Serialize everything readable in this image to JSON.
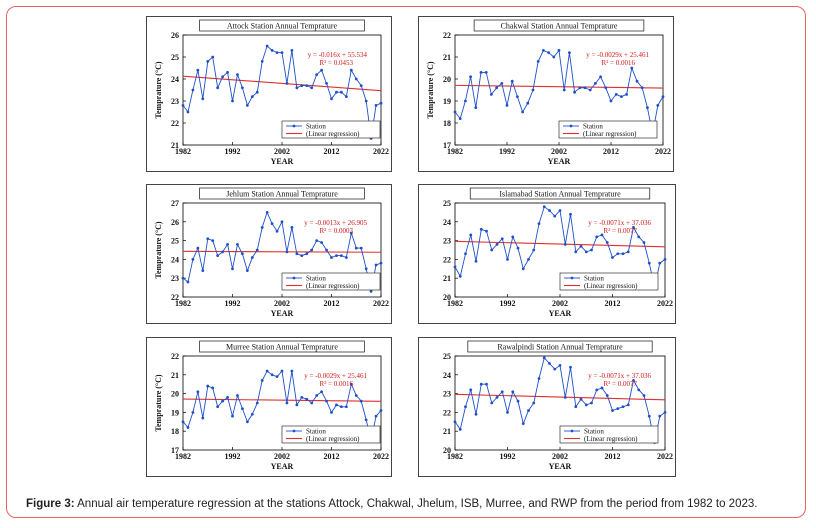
{
  "caption": {
    "label": "Figure 3:",
    "text": " Annual air temperature regression at the stations Attock, Chakwal, Jhelum, ISB, Murree, and RWP from the period from 1982 to 2023."
  },
  "chart_data": [
    {
      "type": "line",
      "title": "Attock Station Annual Temprature",
      "xlabel": "YEAR",
      "ylabel": "Temprature (°C)",
      "xlim": [
        1982,
        2022
      ],
      "ylim": [
        21,
        26
      ],
      "xticks": [
        1982,
        1992,
        2002,
        2012,
        2022
      ],
      "yticks": [
        21,
        22,
        23,
        24,
        25,
        26
      ],
      "equation": "y = -0.016x + 55.534",
      "r2": "R² = 0.0453",
      "trend": [
        24.13,
        23.47
      ],
      "legend": [
        "Station",
        "(Linear regression)"
      ],
      "series": [
        {
          "name": "Station",
          "x": [
            1982,
            1983,
            1984,
            1985,
            1986,
            1987,
            1988,
            1989,
            1990,
            1991,
            1992,
            1993,
            1994,
            1995,
            1996,
            1997,
            1998,
            1999,
            2000,
            2001,
            2002,
            2003,
            2004,
            2005,
            2006,
            2007,
            2008,
            2009,
            2010,
            2011,
            2012,
            2013,
            2014,
            2015,
            2016,
            2017,
            2018,
            2019,
            2020,
            2021,
            2022
          ],
          "values": [
            22.8,
            22.5,
            23.5,
            24.4,
            23.1,
            24.8,
            25.0,
            23.6,
            24.1,
            24.3,
            23.0,
            24.2,
            23.6,
            22.8,
            23.2,
            23.4,
            24.8,
            25.5,
            25.3,
            25.2,
            25.2,
            23.8,
            25.3,
            23.6,
            23.7,
            23.7,
            23.6,
            24.2,
            24.4,
            23.8,
            23.1,
            23.4,
            23.4,
            23.2,
            24.4,
            24.0,
            23.7,
            23.0,
            21.3,
            22.8,
            22.9
          ]
        }
      ]
    },
    {
      "type": "line",
      "title": "Chakwal Station Annual Temprature",
      "xlabel": "YEAR",
      "ylabel": "Temprature (°C)",
      "xlim": [
        1982,
        2022
      ],
      "ylim": [
        17,
        22
      ],
      "xticks": [
        1982,
        1992,
        2002,
        2012,
        2022
      ],
      "yticks": [
        17,
        18,
        19,
        20,
        21,
        22
      ],
      "equation": "y = -0.0029x + 25.461",
      "r2": "R² = 0.0016",
      "trend": [
        19.71,
        19.59
      ],
      "legend": [
        "Station",
        "(Linear regression)"
      ],
      "series": [
        {
          "name": "Station",
          "x": [
            1982,
            1983,
            1984,
            1985,
            1986,
            1987,
            1988,
            1989,
            1990,
            1991,
            1992,
            1993,
            1994,
            1995,
            1996,
            1997,
            1998,
            1999,
            2000,
            2001,
            2002,
            2003,
            2004,
            2005,
            2006,
            2007,
            2008,
            2009,
            2010,
            2011,
            2012,
            2013,
            2014,
            2015,
            2016,
            2017,
            2018,
            2019,
            2020,
            2021,
            2022
          ],
          "values": [
            18.5,
            18.2,
            19.0,
            20.1,
            18.7,
            20.3,
            20.3,
            19.3,
            19.6,
            19.8,
            18.8,
            19.9,
            19.2,
            18.5,
            18.9,
            19.5,
            20.8,
            21.3,
            21.2,
            21.0,
            21.3,
            19.5,
            21.2,
            19.4,
            19.6,
            19.6,
            19.5,
            19.8,
            20.1,
            19.6,
            19.0,
            19.3,
            19.2,
            19.3,
            20.5,
            19.9,
            19.6,
            18.7,
            17.5,
            18.8,
            19.2
          ]
        }
      ]
    },
    {
      "type": "line",
      "title": "Jehlum Station Annual Temprature",
      "xlabel": "YEAR",
      "ylabel": "Temprature (°C)",
      "xlim": [
        1982,
        2022
      ],
      "ylim": [
        22,
        27
      ],
      "xticks": [
        1982,
        1992,
        2002,
        2012,
        2022
      ],
      "yticks": [
        22,
        23,
        24,
        25,
        26,
        27
      ],
      "equation": "y = -0.0013x + 26.905",
      "r2": "R² = 0.0003",
      "trend": [
        24.43,
        24.38
      ],
      "legend": [
        "Station",
        "(Linear regression)"
      ],
      "series": [
        {
          "name": "Station",
          "x": [
            1982,
            1983,
            1984,
            1985,
            1986,
            1987,
            1988,
            1989,
            1990,
            1991,
            1992,
            1993,
            1994,
            1995,
            1996,
            1997,
            1998,
            1999,
            2000,
            2001,
            2002,
            2003,
            2004,
            2005,
            2006,
            2007,
            2008,
            2009,
            2010,
            2011,
            2012,
            2013,
            2014,
            2015,
            2016,
            2017,
            2018,
            2019,
            2020,
            2021,
            2022
          ],
          "values": [
            23.0,
            22.8,
            24.0,
            24.6,
            23.4,
            25.1,
            25.0,
            24.2,
            24.4,
            24.8,
            23.5,
            24.8,
            24.3,
            23.4,
            24.1,
            24.5,
            25.7,
            26.5,
            25.9,
            25.5,
            26.0,
            24.4,
            25.7,
            24.3,
            24.2,
            24.3,
            24.5,
            25.0,
            24.9,
            24.5,
            24.1,
            24.2,
            24.2,
            24.1,
            25.4,
            24.6,
            24.6,
            23.5,
            22.3,
            23.7,
            23.8
          ]
        }
      ]
    },
    {
      "type": "line",
      "title": "Islamabad Station Annual Temprature",
      "xlabel": "YEAR",
      "ylabel": "",
      "xlim": [
        1982,
        2022
      ],
      "ylim": [
        20,
        25
      ],
      "xticks": [
        1982,
        1992,
        2002,
        2012,
        2022
      ],
      "yticks": [
        20,
        21,
        22,
        23,
        24,
        25
      ],
      "equation": "y = -0.0071x + 37.036",
      "r2": "R² = 0.0077",
      "trend": [
        22.96,
        22.67
      ],
      "legend": [
        "Station",
        "(Linear regression)"
      ],
      "series": [
        {
          "name": "Station",
          "x": [
            1982,
            1983,
            1984,
            1985,
            1986,
            1987,
            1988,
            1989,
            1990,
            1991,
            1992,
            1993,
            1994,
            1995,
            1996,
            1997,
            1998,
            1999,
            2000,
            2001,
            2002,
            2003,
            2004,
            2005,
            2006,
            2007,
            2008,
            2009,
            2010,
            2011,
            2012,
            2013,
            2014,
            2015,
            2016,
            2017,
            2018,
            2019,
            2020,
            2021,
            2022
          ],
          "values": [
            21.6,
            21.1,
            22.3,
            23.3,
            21.9,
            23.6,
            23.5,
            22.5,
            22.8,
            23.1,
            22.0,
            23.2,
            22.6,
            21.5,
            22.0,
            22.5,
            23.9,
            24.8,
            24.6,
            24.3,
            24.6,
            22.8,
            24.4,
            22.4,
            22.7,
            22.4,
            22.5,
            23.2,
            23.3,
            22.9,
            22.1,
            22.3,
            22.3,
            22.4,
            23.7,
            23.2,
            22.9,
            21.8,
            20.5,
            21.8,
            22.0
          ]
        }
      ]
    },
    {
      "type": "line",
      "title": "Murree Station Annual Temprature",
      "xlabel": "YEAR",
      "ylabel": "Temprature (°C)",
      "xlim": [
        1982,
        2022
      ],
      "ylim": [
        17,
        22
      ],
      "xticks": [
        1982,
        1992,
        2002,
        2012,
        2022
      ],
      "yticks": [
        17,
        18,
        19,
        20,
        21,
        22
      ],
      "equation": "y = -0.0029x + 25.461",
      "r2": "R² = 0.0016",
      "trend": [
        19.71,
        19.59
      ],
      "legend": [
        "Station",
        "(Linear regression)"
      ],
      "series": [
        {
          "name": "Station",
          "x": [
            1982,
            1983,
            1984,
            1985,
            1986,
            1987,
            1988,
            1989,
            1990,
            1991,
            1992,
            1993,
            1994,
            1995,
            1996,
            1997,
            1998,
            1999,
            2000,
            2001,
            2002,
            2003,
            2004,
            2005,
            2006,
            2007,
            2008,
            2009,
            2010,
            2011,
            2012,
            2013,
            2014,
            2015,
            2016,
            2017,
            2018,
            2019,
            2020,
            2021,
            2022
          ],
          "values": [
            18.5,
            18.2,
            19.0,
            20.1,
            18.7,
            20.4,
            20.3,
            19.3,
            19.6,
            19.8,
            18.8,
            19.9,
            19.2,
            18.5,
            18.9,
            19.5,
            20.7,
            21.2,
            21.0,
            20.9,
            21.2,
            19.5,
            21.2,
            19.4,
            19.8,
            19.7,
            19.5,
            19.9,
            20.1,
            19.6,
            19.0,
            19.4,
            19.3,
            19.3,
            20.5,
            19.9,
            19.6,
            18.6,
            17.5,
            18.8,
            19.1
          ]
        }
      ]
    },
    {
      "type": "line",
      "title": "Rawalpindi Station Annual Temprature",
      "xlabel": "YEAR",
      "ylabel": "",
      "xlim": [
        1982,
        2022
      ],
      "ylim": [
        20,
        25
      ],
      "xticks": [
        1982,
        1992,
        2002,
        2012,
        2022
      ],
      "yticks": [
        20,
        21,
        22,
        23,
        24,
        25
      ],
      "equation": "y = -0.0071x + 37.036",
      "r2": "R² = 0.0077",
      "trend": [
        22.96,
        22.67
      ],
      "legend": [
        "Station",
        "(Linear regression)"
      ],
      "series": [
        {
          "name": "Station",
          "x": [
            1982,
            1983,
            1984,
            1985,
            1986,
            1987,
            1988,
            1989,
            1990,
            1991,
            1992,
            1993,
            1994,
            1995,
            1996,
            1997,
            1998,
            1999,
            2000,
            2001,
            2002,
            2003,
            2004,
            2005,
            2006,
            2007,
            2008,
            2009,
            2010,
            2011,
            2012,
            2013,
            2014,
            2015,
            2016,
            2017,
            2018,
            2019,
            2020,
            2021,
            2022
          ],
          "values": [
            21.5,
            21.1,
            22.3,
            23.2,
            21.9,
            23.5,
            23.5,
            22.5,
            22.8,
            23.1,
            22.0,
            23.1,
            22.6,
            21.4,
            22.1,
            22.5,
            23.8,
            24.9,
            24.6,
            24.3,
            24.5,
            22.8,
            24.4,
            22.3,
            22.7,
            22.4,
            22.5,
            23.2,
            23.3,
            22.9,
            22.1,
            22.2,
            22.3,
            22.4,
            23.7,
            23.2,
            22.9,
            21.8,
            20.4,
            21.8,
            22.0
          ]
        }
      ]
    }
  ]
}
